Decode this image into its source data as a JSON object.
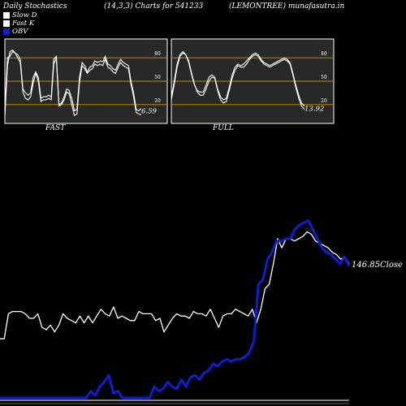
{
  "header": {
    "title": "Daily Stochastics",
    "params": "(14,3,3) Charts for 541233",
    "symbol": "(LEMONTREE) munafasutra.in"
  },
  "legend": {
    "slow_d": "Slow  D",
    "fast_k": "Fast K",
    "obv": "OBV"
  },
  "colors": {
    "background": "#000000",
    "panel": "#282828",
    "reference_line": "#b8860b",
    "stoch_line": "#ffffff",
    "close_line": "#ffffff",
    "obv_line": "#0a1fd0"
  },
  "chart_data": [
    {
      "type": "line",
      "label": "FAST",
      "levels": [
        20,
        50,
        80
      ],
      "level_labels": [
        "20",
        "50",
        "80"
      ],
      "ylim": [
        0,
        100
      ],
      "end_value_label": "6.59",
      "series": [
        {
          "values": [
            15,
            80,
            82,
            88,
            86,
            84,
            78,
            40,
            35,
            32,
            35,
            55,
            62,
            55,
            28,
            30,
            30,
            32,
            30,
            78,
            82,
            20,
            22,
            30,
            40,
            38,
            28,
            12,
            14,
            55,
            74,
            70,
            62,
            68,
            70,
            76,
            74,
            76,
            75,
            82,
            72,
            70,
            66,
            64,
            72,
            78,
            74,
            72,
            70,
            50,
            35,
            14,
            12,
            15
          ]
        },
        {
          "values": [
            5,
            70,
            88,
            90,
            86,
            80,
            74,
            36,
            28,
            26,
            30,
            48,
            60,
            50,
            24,
            26,
            26,
            28,
            26,
            72,
            80,
            18,
            20,
            26,
            36,
            34,
            20,
            6,
            8,
            48,
            70,
            66,
            60,
            64,
            66,
            72,
            70,
            72,
            70,
            78,
            68,
            66,
            62,
            60,
            68,
            74,
            70,
            68,
            66,
            46,
            30,
            10,
            8,
            7
          ]
        }
      ]
    },
    {
      "type": "line",
      "label": "FULL",
      "levels": [
        20,
        50,
        80
      ],
      "level_labels": [
        "20",
        "50",
        "80"
      ],
      "ylim": [
        0,
        100
      ],
      "end_value_label": "13.92",
      "series": [
        {
          "values": [
            30,
            50,
            72,
            84,
            88,
            84,
            74,
            58,
            45,
            38,
            36,
            36,
            45,
            55,
            58,
            55,
            40,
            30,
            26,
            28,
            42,
            58,
            68,
            72,
            70,
            72,
            76,
            80,
            84,
            86,
            84,
            78,
            74,
            72,
            70,
            72,
            74,
            76,
            78,
            80,
            78,
            74,
            60,
            45,
            32,
            22,
            18
          ]
        },
        {
          "values": [
            26,
            46,
            68,
            82,
            86,
            84,
            76,
            60,
            46,
            36,
            32,
            32,
            40,
            50,
            55,
            54,
            38,
            26,
            22,
            24,
            38,
            54,
            64,
            70,
            68,
            68,
            72,
            78,
            82,
            84,
            82,
            76,
            72,
            70,
            68,
            70,
            72,
            74,
            76,
            78,
            76,
            72,
            58,
            42,
            28,
            18,
            14
          ]
        }
      ]
    },
    {
      "type": "line",
      "label": "Close",
      "end_value_label": "146.85",
      "end_value_suffix": "Close",
      "ylim": [
        0,
        100
      ],
      "series": [
        {
          "name": "Close",
          "values": [
            26,
            26,
            37,
            38,
            38,
            38,
            37,
            35,
            35,
            37,
            31,
            30,
            32,
            29,
            32,
            37,
            35,
            34,
            33,
            36,
            33,
            36,
            33,
            36,
            39,
            37,
            36,
            40,
            35,
            36,
            35,
            34,
            34,
            38,
            37,
            37,
            37,
            34,
            35,
            29,
            32,
            35,
            37,
            36,
            36,
            35,
            38,
            37,
            37,
            36,
            39,
            35,
            31,
            36,
            37,
            37,
            39,
            38,
            37,
            36,
            39,
            33,
            39,
            48,
            50,
            59,
            70,
            66,
            70,
            70,
            69,
            70,
            71,
            73,
            72,
            69,
            68,
            67,
            66,
            64,
            63,
            61,
            62,
            59
          ]
        },
        {
          "name": "OBV",
          "values": [
            0,
            0,
            0,
            0,
            0,
            0,
            0,
            0,
            0,
            0,
            0,
            0,
            0,
            0,
            0,
            0,
            0,
            0,
            0,
            0,
            3,
            1,
            5,
            7,
            10,
            2,
            3,
            0,
            0,
            0,
            0,
            0,
            0,
            0,
            5,
            3,
            4,
            7,
            5,
            4,
            8,
            5,
            9,
            10,
            8,
            11,
            12,
            15,
            14,
            16,
            17,
            16,
            17,
            17,
            18,
            20,
            25,
            50,
            52,
            61,
            64,
            69,
            69,
            70,
            70,
            74,
            76,
            77,
            78,
            74,
            70,
            66,
            64,
            63,
            61,
            59,
            62,
            58
          ]
        }
      ]
    }
  ]
}
